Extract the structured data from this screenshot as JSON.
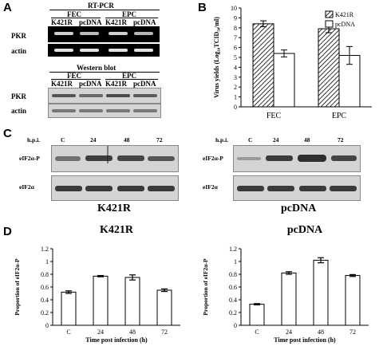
{
  "panels": {
    "A": {
      "letter": "A",
      "rtpcr_title": "RT-PCR",
      "group1": "FEC",
      "group2": "EPC",
      "lanes": [
        "K421R",
        "pcDNA",
        "K421R",
        "pcDNA"
      ],
      "rows": [
        "PKR",
        "actin"
      ],
      "western_title": "Western blot",
      "wb_rows": [
        "PKR",
        "actin"
      ]
    },
    "B": {
      "letter": "B",
      "legend": [
        "K421R",
        "pcDNA"
      ]
    },
    "C": {
      "letter": "C",
      "hpi": "h.p.i.",
      "timepoints": [
        "C",
        "24",
        "48",
        "72"
      ],
      "rows": [
        "eIF2α-P",
        "eIF2α"
      ],
      "left_title": "K421R",
      "right_title": "pcDNA"
    },
    "D": {
      "letter": "D"
    }
  },
  "chart_data": [
    {
      "type": "bar",
      "panel": "B",
      "categories": [
        "FEC",
        "EPC"
      ],
      "series": [
        {
          "name": "K421R",
          "values": [
            8.4,
            7.9
          ],
          "errors": [
            0.3,
            0.4
          ],
          "pattern": "hatched"
        },
        {
          "name": "pcDNA",
          "values": [
            5.4,
            5.2
          ],
          "errors": [
            0.35,
            0.9
          ],
          "pattern": "white"
        }
      ],
      "ylabel": "Virus yields (Log₁₀TCID₅₀/ml)",
      "ylim": [
        0,
        10
      ],
      "yticks": [
        "0",
        "1",
        "2",
        "3",
        "4",
        "5",
        "6",
        "7",
        "8",
        "9",
        "10"
      ],
      "legend_position": "top-right"
    },
    {
      "type": "bar",
      "panel": "D-left",
      "title": "K421R",
      "categories": [
        "C",
        "24",
        "48",
        "72"
      ],
      "values": [
        0.52,
        0.77,
        0.75,
        0.55
      ],
      "errors": [
        0.02,
        0.01,
        0.04,
        0.02
      ],
      "ylabel": "Proportion of eIF2α-P",
      "xlabel": "Time post infection (h)",
      "ylim": [
        0,
        1.2
      ],
      "yticks": [
        "0",
        "0.2",
        "0.4",
        "0.6",
        "0.8",
        "1",
        "1.2"
      ]
    },
    {
      "type": "bar",
      "panel": "D-right",
      "title": "pcDNA",
      "categories": [
        "C",
        "24",
        "48",
        "72"
      ],
      "values": [
        0.33,
        0.82,
        1.02,
        0.78
      ],
      "errors": [
        0.01,
        0.02,
        0.04,
        0.015
      ],
      "ylabel": "Proportion of eIF2α-P",
      "xlabel": "Time post infection (h)",
      "ylim": [
        0,
        1.2
      ],
      "yticks": [
        "0",
        "0.2",
        "0.4",
        "0.6",
        "0.8",
        "1",
        "1.2"
      ]
    }
  ]
}
